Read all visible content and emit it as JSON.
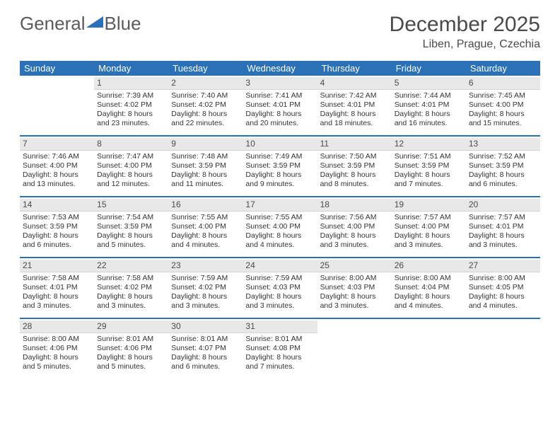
{
  "brand": {
    "part1": "General",
    "part2": "Blue"
  },
  "title": "December 2025",
  "location": "Liben, Prague, Czechia",
  "colors": {
    "accent": "#2a71b8",
    "dayhead_bg": "#e8e8e8",
    "text": "#333333"
  },
  "font": {
    "family": "Arial",
    "title_size": 30,
    "body_size": 10.5
  },
  "layout": {
    "cols": 7,
    "cell_min_height": 84
  },
  "day_names": [
    "Sunday",
    "Monday",
    "Tuesday",
    "Wednesday",
    "Thursday",
    "Friday",
    "Saturday"
  ],
  "weeks": [
    [
      {
        "blank": true
      },
      {
        "num": "1",
        "sunrise": "7:39 AM",
        "sunset": "4:02 PM",
        "daylight": "8 hours and 23 minutes."
      },
      {
        "num": "2",
        "sunrise": "7:40 AM",
        "sunset": "4:02 PM",
        "daylight": "8 hours and 22 minutes."
      },
      {
        "num": "3",
        "sunrise": "7:41 AM",
        "sunset": "4:01 PM",
        "daylight": "8 hours and 20 minutes."
      },
      {
        "num": "4",
        "sunrise": "7:42 AM",
        "sunset": "4:01 PM",
        "daylight": "8 hours and 18 minutes."
      },
      {
        "num": "5",
        "sunrise": "7:44 AM",
        "sunset": "4:01 PM",
        "daylight": "8 hours and 16 minutes."
      },
      {
        "num": "6",
        "sunrise": "7:45 AM",
        "sunset": "4:00 PM",
        "daylight": "8 hours and 15 minutes."
      }
    ],
    [
      {
        "num": "7",
        "sunrise": "7:46 AM",
        "sunset": "4:00 PM",
        "daylight": "8 hours and 13 minutes."
      },
      {
        "num": "8",
        "sunrise": "7:47 AM",
        "sunset": "4:00 PM",
        "daylight": "8 hours and 12 minutes."
      },
      {
        "num": "9",
        "sunrise": "7:48 AM",
        "sunset": "3:59 PM",
        "daylight": "8 hours and 11 minutes."
      },
      {
        "num": "10",
        "sunrise": "7:49 AM",
        "sunset": "3:59 PM",
        "daylight": "8 hours and 9 minutes."
      },
      {
        "num": "11",
        "sunrise": "7:50 AM",
        "sunset": "3:59 PM",
        "daylight": "8 hours and 8 minutes."
      },
      {
        "num": "12",
        "sunrise": "7:51 AM",
        "sunset": "3:59 PM",
        "daylight": "8 hours and 7 minutes."
      },
      {
        "num": "13",
        "sunrise": "7:52 AM",
        "sunset": "3:59 PM",
        "daylight": "8 hours and 6 minutes."
      }
    ],
    [
      {
        "num": "14",
        "sunrise": "7:53 AM",
        "sunset": "3:59 PM",
        "daylight": "8 hours and 6 minutes."
      },
      {
        "num": "15",
        "sunrise": "7:54 AM",
        "sunset": "3:59 PM",
        "daylight": "8 hours and 5 minutes."
      },
      {
        "num": "16",
        "sunrise": "7:55 AM",
        "sunset": "4:00 PM",
        "daylight": "8 hours and 4 minutes."
      },
      {
        "num": "17",
        "sunrise": "7:55 AM",
        "sunset": "4:00 PM",
        "daylight": "8 hours and 4 minutes."
      },
      {
        "num": "18",
        "sunrise": "7:56 AM",
        "sunset": "4:00 PM",
        "daylight": "8 hours and 3 minutes."
      },
      {
        "num": "19",
        "sunrise": "7:57 AM",
        "sunset": "4:00 PM",
        "daylight": "8 hours and 3 minutes."
      },
      {
        "num": "20",
        "sunrise": "7:57 AM",
        "sunset": "4:01 PM",
        "daylight": "8 hours and 3 minutes."
      }
    ],
    [
      {
        "num": "21",
        "sunrise": "7:58 AM",
        "sunset": "4:01 PM",
        "daylight": "8 hours and 3 minutes."
      },
      {
        "num": "22",
        "sunrise": "7:58 AM",
        "sunset": "4:02 PM",
        "daylight": "8 hours and 3 minutes."
      },
      {
        "num": "23",
        "sunrise": "7:59 AM",
        "sunset": "4:02 PM",
        "daylight": "8 hours and 3 minutes."
      },
      {
        "num": "24",
        "sunrise": "7:59 AM",
        "sunset": "4:03 PM",
        "daylight": "8 hours and 3 minutes."
      },
      {
        "num": "25",
        "sunrise": "8:00 AM",
        "sunset": "4:03 PM",
        "daylight": "8 hours and 3 minutes."
      },
      {
        "num": "26",
        "sunrise": "8:00 AM",
        "sunset": "4:04 PM",
        "daylight": "8 hours and 4 minutes."
      },
      {
        "num": "27",
        "sunrise": "8:00 AM",
        "sunset": "4:05 PM",
        "daylight": "8 hours and 4 minutes."
      }
    ],
    [
      {
        "num": "28",
        "sunrise": "8:00 AM",
        "sunset": "4:06 PM",
        "daylight": "8 hours and 5 minutes."
      },
      {
        "num": "29",
        "sunrise": "8:01 AM",
        "sunset": "4:06 PM",
        "daylight": "8 hours and 5 minutes."
      },
      {
        "num": "30",
        "sunrise": "8:01 AM",
        "sunset": "4:07 PM",
        "daylight": "8 hours and 6 minutes."
      },
      {
        "num": "31",
        "sunrise": "8:01 AM",
        "sunset": "4:08 PM",
        "daylight": "8 hours and 7 minutes."
      },
      {
        "blank": true
      },
      {
        "blank": true
      },
      {
        "blank": true
      }
    ]
  ],
  "labels": {
    "sunrise": "Sunrise:",
    "sunset": "Sunset:",
    "daylight": "Daylight:"
  }
}
